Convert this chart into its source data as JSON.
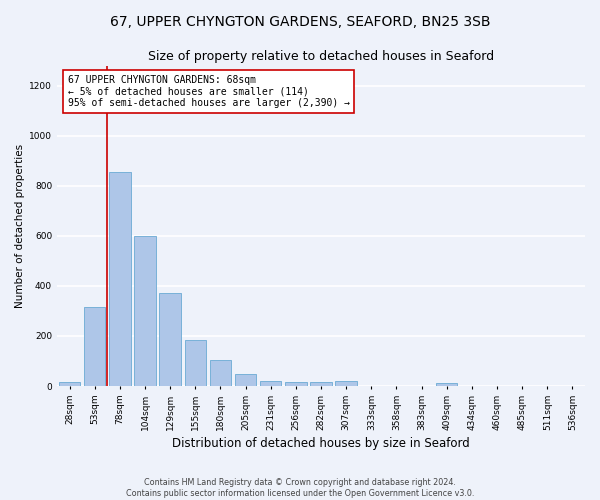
{
  "title1": "67, UPPER CHYNGTON GARDENS, SEAFORD, BN25 3SB",
  "title2": "Size of property relative to detached houses in Seaford",
  "xlabel": "Distribution of detached houses by size in Seaford",
  "ylabel": "Number of detached properties",
  "footnote1": "Contains HM Land Registry data © Crown copyright and database right 2024.",
  "footnote2": "Contains public sector information licensed under the Open Government Licence v3.0.",
  "bar_labels": [
    "28sqm",
    "53sqm",
    "78sqm",
    "104sqm",
    "129sqm",
    "155sqm",
    "180sqm",
    "205sqm",
    "231sqm",
    "256sqm",
    "282sqm",
    "307sqm",
    "333sqm",
    "358sqm",
    "383sqm",
    "409sqm",
    "434sqm",
    "460sqm",
    "485sqm",
    "511sqm",
    "536sqm"
  ],
  "bar_values": [
    15,
    315,
    853,
    598,
    370,
    185,
    105,
    48,
    22,
    18,
    18,
    20,
    0,
    0,
    0,
    12,
    0,
    0,
    0,
    0,
    0
  ],
  "bar_color": "#aec6e8",
  "bar_edge_color": "#6aaad4",
  "vline_color": "#cc0000",
  "vline_x_index": 1.5,
  "ylim": [
    0,
    1280
  ],
  "yticks": [
    0,
    200,
    400,
    600,
    800,
    1000,
    1200
  ],
  "annotation_lines": [
    "67 UPPER CHYNGTON GARDENS: 68sqm",
    "← 5% of detached houses are smaller (114)",
    "95% of semi-detached houses are larger (2,390) →"
  ],
  "annotation_box_color": "#ffffff",
  "annotation_box_edge": "#cc0000",
  "background_color": "#eef2fa",
  "grid_color": "#ffffff",
  "title1_fontsize": 10,
  "title2_fontsize": 9,
  "annotation_fontsize": 7,
  "xlabel_fontsize": 8.5,
  "ylabel_fontsize": 7.5,
  "tick_fontsize": 6.5,
  "footnote_fontsize": 5.8
}
